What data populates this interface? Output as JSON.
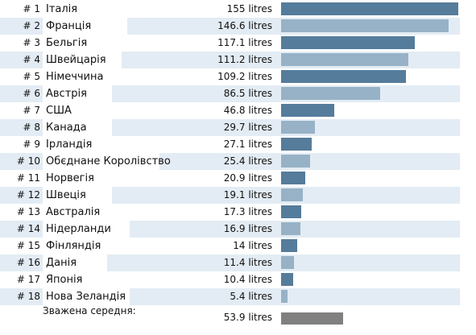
{
  "colors": {
    "bar_dark": "#557c9b",
    "bar_light": "#97b2c6",
    "stripe": "#e3ecf4",
    "average_bar": "#808080"
  },
  "chart_data": {
    "type": "bar",
    "orientation": "horizontal",
    "title": "",
    "xlabel": "",
    "ylabel": "",
    "xlim": [
      0,
      155
    ],
    "grid": false,
    "unit": "litres",
    "rows": [
      {
        "rank": "# 1",
        "country": "Італія",
        "value": 155,
        "label": "155 litres"
      },
      {
        "rank": "# 2",
        "country": "Франція",
        "value": 146.6,
        "label": "146.6 litres"
      },
      {
        "rank": "# 3",
        "country": "Бельгія",
        "value": 117.1,
        "label": "117.1 litres"
      },
      {
        "rank": "# 4",
        "country": "Швейцарія",
        "value": 111.2,
        "label": "111.2 litres"
      },
      {
        "rank": "# 5",
        "country": "Німеччина",
        "value": 109.2,
        "label": "109.2 litres"
      },
      {
        "rank": "# 6",
        "country": "Австрія",
        "value": 86.5,
        "label": "86.5 litres"
      },
      {
        "rank": "# 7",
        "country": "США",
        "value": 46.8,
        "label": "46.8 litres"
      },
      {
        "rank": "# 8",
        "country": "Канада",
        "value": 29.7,
        "label": "29.7 litres"
      },
      {
        "rank": "# 9",
        "country": "Ірландія",
        "value": 27.1,
        "label": "27.1 litres"
      },
      {
        "rank": "# 10",
        "country": "Обєднане Королівство",
        "value": 25.4,
        "label": "25.4 litres"
      },
      {
        "rank": "# 11",
        "country": "Норвегія",
        "value": 20.9,
        "label": "20.9 litres"
      },
      {
        "rank": "# 12",
        "country": "Швеція",
        "value": 19.1,
        "label": "19.1 litres"
      },
      {
        "rank": "# 13",
        "country": "Австралія",
        "value": 17.3,
        "label": "17.3 litres"
      },
      {
        "rank": "# 14",
        "country": "Нідерланди",
        "value": 16.9,
        "label": "16.9 litres"
      },
      {
        "rank": "# 15",
        "country": "Фінляндія",
        "value": 14,
        "label": "14 litres"
      },
      {
        "rank": "# 16",
        "country": "Данія",
        "value": 11.4,
        "label": "11.4 litres"
      },
      {
        "rank": "# 17",
        "country": "Японія",
        "value": 10.4,
        "label": "10.4 litres"
      },
      {
        "rank": "# 18",
        "country": "Нова Зеландія",
        "value": 5.4,
        "label": "5.4 litres"
      }
    ],
    "average": {
      "label": "Зважена середня:",
      "value": 53.9,
      "value_label": "53.9 litres"
    }
  }
}
